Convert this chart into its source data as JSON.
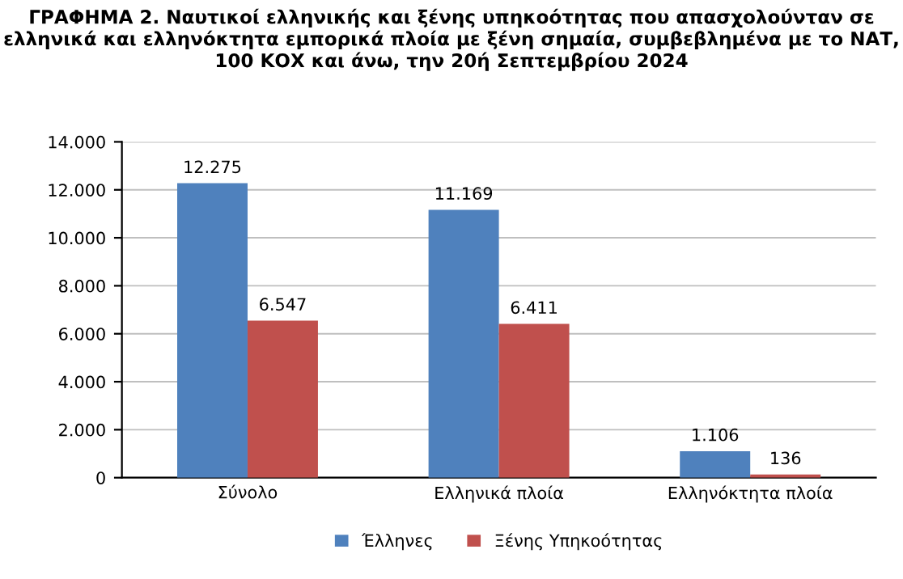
{
  "chart_data": {
    "type": "bar",
    "title": "ΓΡΑΦΗΜΑ 2. Ναυτικοί ελληνικής και ξένης υπηκοότητας που απασχολούνταν σε ελληνικά και ελληνόκτητα εμπορικά πλοία με ξένη σημαία, συμβεβλημένα με το ΝΑΤ, 100 ΚΟΧ και άνω, την 20ή Σεπτεμβρίου 2024",
    "categories": [
      "Σύνολο",
      "Ελληνικά πλοία",
      "Ελληνόκτητα πλοία"
    ],
    "series": [
      {
        "name": "Έλληνες",
        "color": "#4f81bd",
        "values": [
          12275,
          11169,
          1106
        ],
        "value_labels": [
          "12.275",
          "11.169",
          "1.106"
        ]
      },
      {
        "name": "Ξένης Υπηκοότητας",
        "color": "#c0504d",
        "values": [
          6547,
          6411,
          136
        ],
        "value_labels": [
          "6.547",
          "6.411",
          "136"
        ]
      }
    ],
    "ylim": [
      0,
      14000
    ],
    "yticks": [
      0,
      {
        "value": 2000,
        "label": "2.000"
      },
      {
        "value": 4000,
        "label": "4.000"
      },
      {
        "value": 6000,
        "label": "6.000"
      },
      {
        "value": 8000,
        "label": "8.000"
      },
      {
        "value": 10000,
        "label": "10.000"
      },
      {
        "value": 12000,
        "label": "12.000"
      },
      {
        "value": 14000,
        "label": "14.000"
      }
    ],
    "grid": "y",
    "legend": "bottom"
  }
}
